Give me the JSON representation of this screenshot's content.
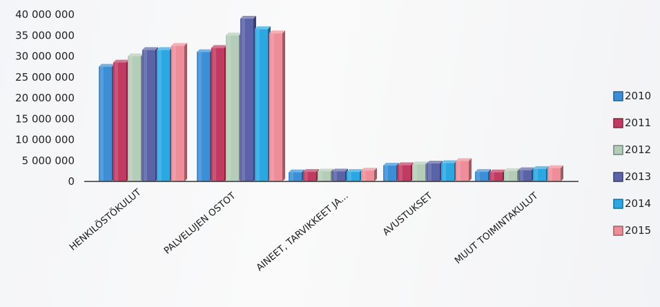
{
  "chart_data": {
    "type": "bar",
    "categories": [
      "HENKILÖSTÖKULUT",
      "PALVELUJEN OSTOT",
      "AINEET, TARVIKKEET JA...",
      "AVUSTUKSET",
      "MUUT TOIMINTAKULUT"
    ],
    "series": [
      {
        "name": "2010",
        "color": "#3a8fd6",
        "values": [
          27500000,
          31000000,
          2200000,
          3800000,
          2300000
        ]
      },
      {
        "name": "2011",
        "color": "#c23a62",
        "values": [
          28500000,
          32000000,
          2300000,
          3900000,
          2200000
        ]
      },
      {
        "name": "2012",
        "color": "#b4cdb8",
        "values": [
          30000000,
          35000000,
          2400000,
          4100000,
          2500000
        ]
      },
      {
        "name": "2013",
        "color": "#5a63a8",
        "values": [
          31500000,
          39000000,
          2400000,
          4300000,
          2700000
        ]
      },
      {
        "name": "2014",
        "color": "#2aa8e3",
        "values": [
          31500000,
          36500000,
          2300000,
          4400000,
          3000000
        ]
      },
      {
        "name": "2015",
        "color": "#ef8d98",
        "values": [
          32500000,
          35500000,
          2600000,
          4900000,
          3200000
        ]
      }
    ],
    "y_ticks": [
      "40 000 000",
      "35 000 000",
      "30 000 000",
      "25 000 000",
      "20 000 000",
      "15 000 000",
      "10 000 000",
      "5 000 000",
      "0"
    ],
    "ylim": [
      0,
      40000000
    ],
    "legend_position": "right",
    "title": "",
    "xlabel": "",
    "ylabel": ""
  }
}
